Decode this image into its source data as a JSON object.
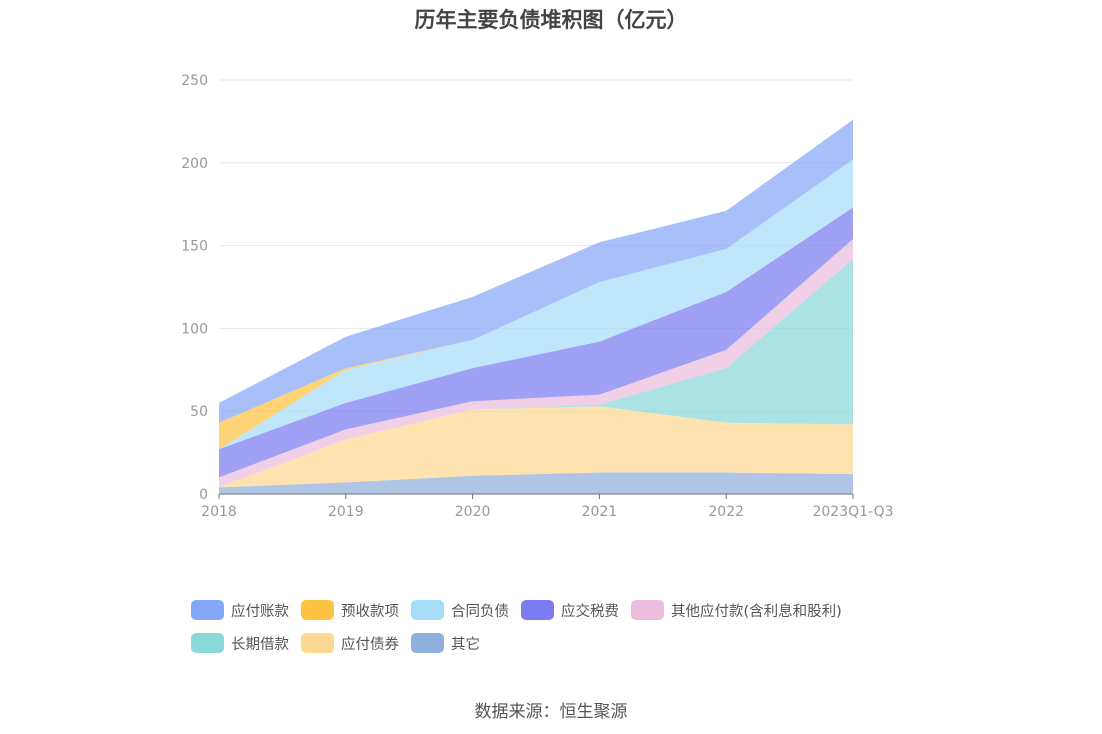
{
  "chart_data": {
    "type": "area",
    "stacked": true,
    "title": "历年主要负债堆积图（亿元）",
    "categories": [
      "2018",
      "2019",
      "2020",
      "2021",
      "2022",
      "2023Q1-Q3"
    ],
    "ylim": [
      0,
      250
    ],
    "yticks": [
      0,
      50,
      100,
      150,
      200,
      250
    ],
    "grid": true,
    "legend_position": "bottom",
    "series": [
      {
        "name": "其它",
        "color": "#8fafdd",
        "values": [
          4,
          7,
          11,
          13,
          13,
          12
        ]
      },
      {
        "name": "应付债券",
        "color": "#fdd892",
        "values": [
          0,
          26,
          40,
          40,
          30,
          30
        ]
      },
      {
        "name": "长期借款",
        "color": "#8bd8d9",
        "values": [
          0,
          0,
          0,
          1,
          33,
          100
        ]
      },
      {
        "name": "其他应付款(含利息和股利)",
        "color": "#ebbcdc",
        "values": [
          6,
          6,
          5,
          6,
          11,
          12
        ]
      },
      {
        "name": "应交税费",
        "color": "#7b7cf0",
        "values": [
          17,
          16,
          20,
          32,
          35,
          19
        ]
      },
      {
        "name": "合同负债",
        "color": "#a6ddf9",
        "values": [
          0,
          20,
          17,
          36,
          26,
          29
        ]
      },
      {
        "name": "预收款项",
        "color": "#fdc443",
        "values": [
          16,
          1,
          0,
          0,
          0,
          0
        ]
      },
      {
        "name": "应付账款",
        "color": "#86a6f8",
        "values": [
          12,
          19,
          26,
          24,
          23,
          24
        ]
      }
    ]
  },
  "legend_order": [
    "应付账款",
    "预收款项",
    "合同负债",
    "应交税费",
    "其他应付款(含利息和股利)",
    "长期借款",
    "应付债券",
    "其它"
  ],
  "source_note": "数据来源：恒生聚源"
}
